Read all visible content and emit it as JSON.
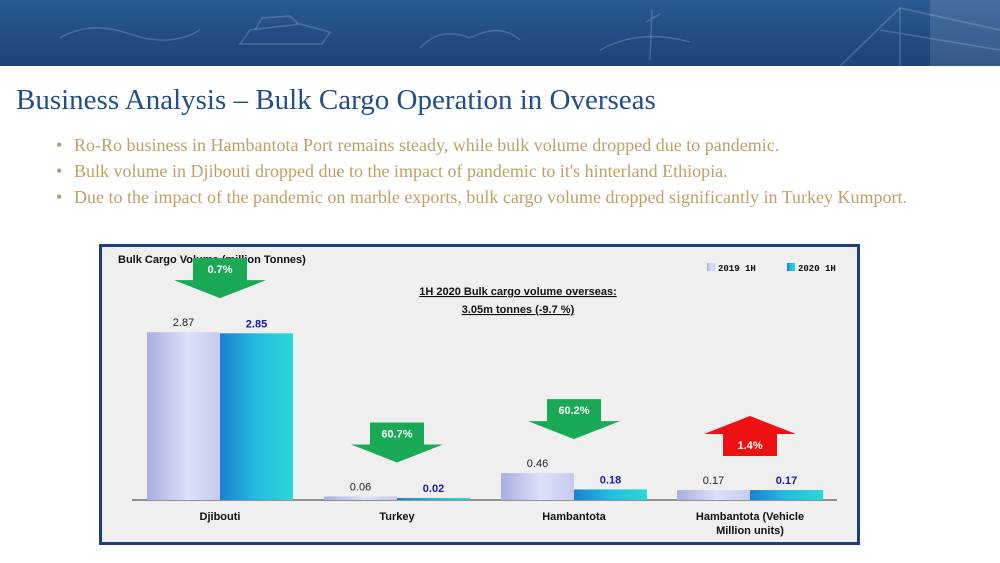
{
  "page": {
    "title": "Business Analysis – Bulk Cargo Operation in Overseas",
    "bullets": [
      "Ro-Ro business in Hambantota Port remains steady, while bulk volume dropped due to pandemic.",
      "Bulk volume in Djibouti dropped due to the impact of pandemic to it's hinterland Ethiopia.",
      "Due to the impact of the pandemic on marble exports, bulk cargo volume dropped significantly in Turkey Kumport."
    ]
  },
  "colors": {
    "banner": "#1f4c82",
    "title": "#1f4f86",
    "bullet_text": "#c0a062",
    "series_2019": "#c8cdf0",
    "series_2020": "#1fc8d8",
    "arrow_down": "#1aaa55",
    "arrow_up": "#ee1111",
    "label_2020": "#1a1aa0"
  },
  "chart_data": {
    "type": "bar",
    "title": "Bulk Cargo Volume (million Tonnes)",
    "annotation": [
      "1H 2020 Bulk cargo volume overseas:",
      "3.05m tonnes (-9.7 %)"
    ],
    "categories": [
      [
        "Djibouti"
      ],
      [
        "Turkey"
      ],
      [
        "Hambantota"
      ],
      [
        "Hambantota (Vehicle",
        "Million units)"
      ]
    ],
    "series": [
      {
        "name": "2019 1H",
        "values": [
          2.87,
          0.06,
          0.46,
          0.17
        ],
        "labels": [
          "2.87",
          "0.06",
          "0.46",
          "0.17"
        ]
      },
      {
        "name": "2020 1H",
        "values": [
          2.85,
          0.02,
          0.18,
          0.17
        ],
        "labels": [
          "2.85",
          "0.02",
          "0.18",
          "0.17"
        ]
      }
    ],
    "changes": [
      {
        "label": "0.7%",
        "direction": "down"
      },
      {
        "label": "60.7%",
        "direction": "down"
      },
      {
        "label": "60.2%",
        "direction": "down"
      },
      {
        "label": "1.4%",
        "direction": "up"
      }
    ],
    "ylim": [
      0,
      3.3
    ],
    "grid": false,
    "legend": "top-right"
  }
}
